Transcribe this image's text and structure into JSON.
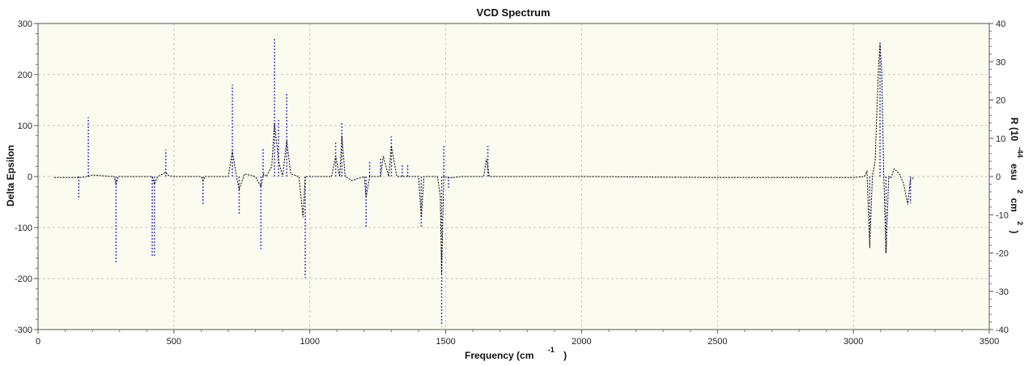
{
  "chart_data": {
    "type": "line",
    "title": "VCD Spectrum",
    "xlabel": "Frequency (cm",
    "xlabel_sup": "-1",
    "xlabel_close": ")",
    "ylabel": "Delta Epsilon",
    "y2label": "R (10",
    "y2label_sup1": "-44",
    "y2label_mid": "esu",
    "y2label_sup2": "2",
    "y2label_mid2": "cm",
    "y2label_sup3": "2",
    "y2label_close": ")",
    "xlim": [
      0,
      3500
    ],
    "ylim": [
      -300,
      300
    ],
    "y2lim": [
      -40,
      40
    ],
    "x_ticks": [
      0,
      500,
      1000,
      1500,
      2000,
      2500,
      3000,
      3500
    ],
    "y_ticks": [
      -300,
      -200,
      -100,
      0,
      100,
      200,
      300
    ],
    "y2_ticks": [
      -40,
      -30,
      -20,
      -10,
      0,
      10,
      20,
      30,
      40
    ],
    "grid": true,
    "colors": {
      "plot_background": "#fbfbef",
      "spectrum_line": "#000000",
      "stick_line": "#4040e0",
      "grid": "#c8c8c8"
    },
    "series": [
      {
        "kind": "spectrum",
        "axis": "left",
        "x": [
          60,
          150,
          185,
          200,
          280,
          287,
          295,
          380,
          420,
          428,
          440,
          470,
          480,
          500,
          600,
          607,
          615,
          700,
          715,
          730,
          740,
          760,
          800,
          820,
          830,
          840,
          860,
          870,
          885,
          900,
          915,
          930,
          960,
          975,
          983,
          995,
          1050,
          1080,
          1095,
          1110,
          1118,
          1130,
          1155,
          1200,
          1207,
          1220,
          1260,
          1270,
          1290,
          1300,
          1320,
          1340,
          1360,
          1400,
          1410,
          1420,
          1470,
          1480,
          1485,
          1493,
          1510,
          1560,
          1640,
          1650,
          1660,
          1700,
          2000,
          2500,
          2900,
          3000,
          3040,
          3050,
          3060,
          3070,
          3080,
          3092,
          3098,
          3104,
          3112,
          3120,
          3130,
          3138,
          3150,
          3170,
          3185,
          3200,
          3210,
          3225
        ],
        "values": [
          -2,
          -2,
          0,
          3,
          0,
          -15,
          0,
          0,
          0,
          -15,
          0,
          8,
          2,
          0,
          0,
          -8,
          0,
          0,
          50,
          0,
          -25,
          5,
          0,
          -20,
          5,
          0,
          20,
          105,
          30,
          0,
          70,
          5,
          0,
          -80,
          0,
          0,
          0,
          0,
          40,
          0,
          80,
          0,
          -8,
          0,
          -40,
          0,
          0,
          40,
          0,
          60,
          0,
          0,
          0,
          0,
          -80,
          0,
          0,
          -40,
          -190,
          0,
          -3,
          0,
          0,
          35,
          0,
          0,
          0,
          -2,
          -2,
          -2,
          0,
          10,
          -140,
          0,
          30,
          210,
          260,
          210,
          0,
          -150,
          0,
          -3,
          15,
          5,
          -15,
          -55,
          -5,
          -2
        ]
      },
      {
        "kind": "sticks",
        "axis": "right",
        "x": [
          150,
          185,
          287,
          420,
          428,
          470,
          607,
          715,
          740,
          820,
          828,
          870,
          885,
          915,
          983,
          1095,
          1118,
          1207,
          1220,
          1260,
          1300,
          1340,
          1360,
          1410,
          1485,
          1493,
          1510,
          1655,
          3060,
          3098,
          3120,
          3210
        ],
        "values": [
          -6,
          15.5,
          -22.5,
          -21,
          -21,
          7,
          -7.5,
          24,
          -10,
          -19,
          7.5,
          36,
          15,
          22,
          -26.5,
          9,
          14,
          -13.5,
          4,
          5,
          10.5,
          3,
          3,
          -13.5,
          -39,
          8,
          -3,
          8,
          -16,
          35,
          -20,
          -7
        ]
      }
    ]
  }
}
